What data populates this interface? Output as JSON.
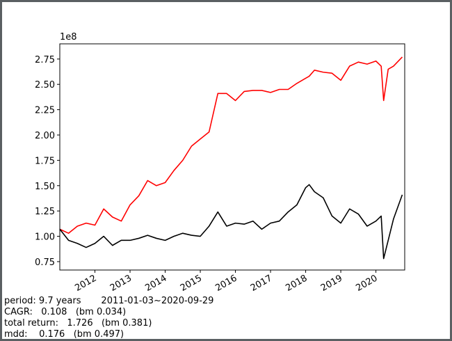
{
  "chart_data": {
    "type": "line",
    "offset_label": "1e8",
    "x": [
      2011.0,
      2011.25,
      2011.5,
      2011.75,
      2012.0,
      2012.25,
      2012.5,
      2012.75,
      2013.0,
      2013.25,
      2013.5,
      2013.75,
      2014.0,
      2014.25,
      2014.5,
      2014.75,
      2015.0,
      2015.25,
      2015.5,
      2015.75,
      2016.0,
      2016.25,
      2016.5,
      2016.75,
      2017.0,
      2017.25,
      2017.5,
      2017.75,
      2018.0,
      2018.1,
      2018.25,
      2018.5,
      2018.75,
      2019.0,
      2019.25,
      2019.5,
      2019.75,
      2020.0,
      2020.15,
      2020.22,
      2020.35,
      2020.5,
      2020.75
    ],
    "series": [
      {
        "color": "#ff0000",
        "values": [
          1.07,
          1.03,
          1.1,
          1.13,
          1.11,
          1.27,
          1.19,
          1.15,
          1.31,
          1.4,
          1.55,
          1.5,
          1.53,
          1.65,
          1.75,
          1.89,
          1.96,
          2.03,
          2.41,
          2.41,
          2.34,
          2.43,
          2.44,
          2.44,
          2.42,
          2.45,
          2.45,
          2.51,
          2.56,
          2.58,
          2.64,
          2.62,
          2.61,
          2.54,
          2.68,
          2.72,
          2.7,
          2.73,
          2.68,
          2.34,
          2.65,
          2.68,
          2.77
        ]
      },
      {
        "color": "#000000",
        "values": [
          1.07,
          0.96,
          0.93,
          0.89,
          0.93,
          1.0,
          0.91,
          0.96,
          0.96,
          0.98,
          1.01,
          0.98,
          0.96,
          1.0,
          1.03,
          1.01,
          1.0,
          1.1,
          1.24,
          1.1,
          1.13,
          1.12,
          1.15,
          1.07,
          1.13,
          1.15,
          1.24,
          1.31,
          1.48,
          1.51,
          1.44,
          1.38,
          1.2,
          1.13,
          1.27,
          1.22,
          1.1,
          1.15,
          1.2,
          0.78,
          0.96,
          1.17,
          1.41
        ]
      }
    ],
    "xlim": [
      2011.0,
      2020.82
    ],
    "xticks": [
      2012,
      2013,
      2014,
      2015,
      2016,
      2017,
      2018,
      2019,
      2020
    ],
    "ylim": [
      0.667,
      2.9
    ],
    "yticks": [
      0.75,
      {
        "value": 1.0,
        "label": "1.00"
      },
      1.25,
      {
        "value": 1.5,
        "label": "1.50"
      },
      1.75,
      {
        "value": 2.0,
        "label": "2.00"
      },
      2.25,
      {
        "value": 2.5,
        "label": "2.50"
      },
      2.75
    ],
    "annotations": [
      "period: 9.7 years       2011-01-03~2020-09-29",
      "CAGR:   0.108   (bm 0.034)",
      "total return:   1.726   (bm 0.381)",
      "mdd:    0.176   (bm 0.497)"
    ]
  }
}
